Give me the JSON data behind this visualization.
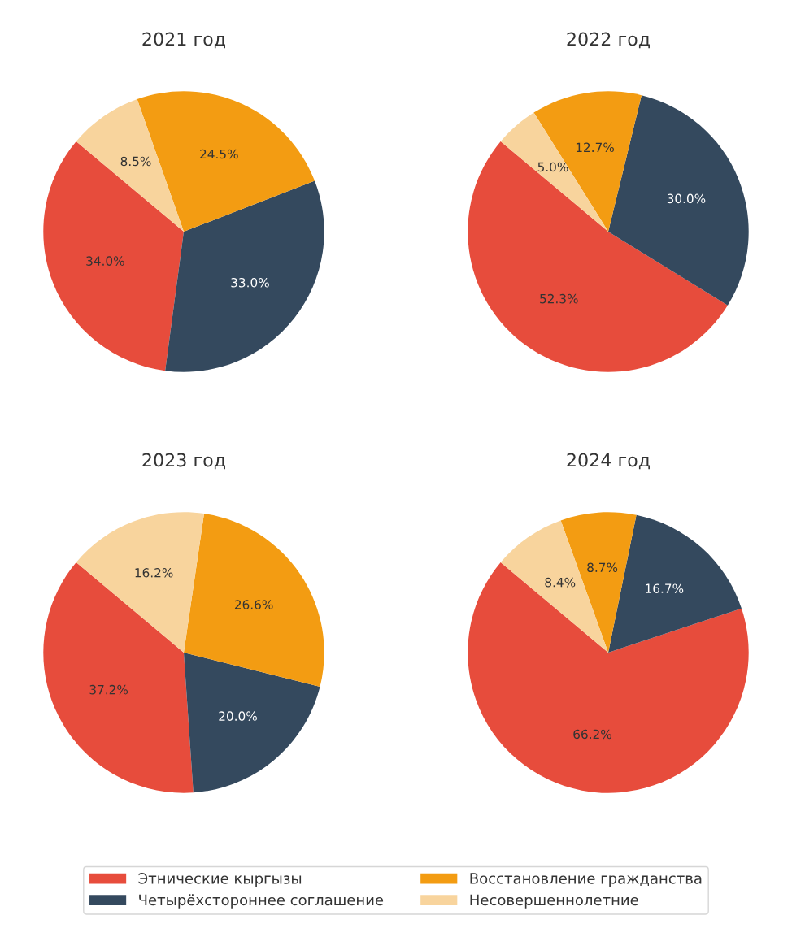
{
  "chart_data": [
    {
      "type": "pie",
      "title": "2021 год",
      "categories": [
        "Этнические кыргызы",
        "Четырёхстороннее соглашение",
        "Восстановление гражданства",
        "Несовершеннолетние"
      ],
      "values": [
        34.0,
        33.0,
        24.5,
        8.5
      ],
      "value_labels": [
        "34.0%",
        "33.0%",
        "24.5%",
        "8.5%"
      ],
      "colors": [
        "#e74c3c",
        "#34495e",
        "#f39c12",
        "#f8d49d"
      ],
      "legend": "bottom"
    },
    {
      "type": "pie",
      "title": "2022 год",
      "categories": [
        null,
        null,
        null,
        null
      ],
      "values": [
        52.3,
        30.0,
        12.7,
        5.0
      ],
      "value_labels": [
        "52.3%",
        "30.0%",
        "12.7%",
        "5.0%"
      ],
      "colors": [
        "#e74c3c",
        "#34495e",
        "#f39c12",
        "#f8d49d"
      ]
    },
    {
      "type": "pie",
      "title": "2023 год",
      "categories": [
        null,
        null,
        null,
        null
      ],
      "values": [
        37.2,
        20.0,
        26.6,
        16.2
      ],
      "value_labels": [
        "37.2%",
        "20.0%",
        "26.6%",
        "16.2%"
      ],
      "colors": [
        "#e74c3c",
        "#34495e",
        "#f39c12",
        "#f8d49d"
      ]
    },
    {
      "type": "pie",
      "title": "2024 год",
      "categories": [
        null,
        null,
        null,
        null
      ],
      "values": [
        66.2,
        16.7,
        8.7,
        8.4
      ],
      "value_labels": [
        "66.2%",
        "16.7%",
        "8.7%",
        "8.4%"
      ],
      "colors": [
        "#e74c3c",
        "#34495e",
        "#f39c12",
        "#f8d49d"
      ]
    }
  ]
}
